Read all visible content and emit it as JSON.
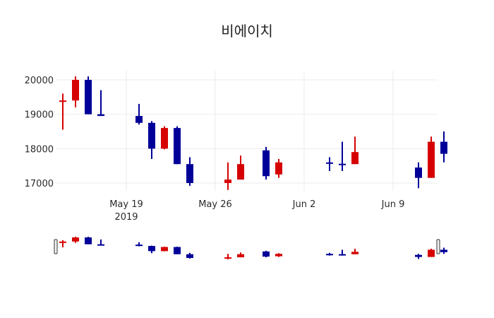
{
  "chart_data": {
    "type": "candlestick",
    "title": "비에이치",
    "xlabel": "",
    "ylabel": "",
    "ylim": [
      16650,
      20300
    ],
    "y_ticks": [
      17000,
      18000,
      19000,
      20000
    ],
    "x_ticks": [
      {
        "label": "May 19",
        "sublabel": "2019",
        "date": "2019-05-19"
      },
      {
        "label": "May 26",
        "sublabel": "",
        "date": "2019-05-26"
      },
      {
        "label": "Jun 2",
        "sublabel": "",
        "date": "2019-06-02"
      },
      {
        "label": "Jun 9",
        "sublabel": "",
        "date": "2019-06-09"
      }
    ],
    "grid": true,
    "increasing_color": "#d60000",
    "decreasing_color": "#000099",
    "range_slider": true,
    "candles": [
      {
        "date": "2019-05-14",
        "open": 19400,
        "high": 19600,
        "low": 18550,
        "close": 19400,
        "dir": "up"
      },
      {
        "date": "2019-05-15",
        "open": 19400,
        "high": 20100,
        "low": 19200,
        "close": 20000,
        "dir": "up"
      },
      {
        "date": "2019-05-16",
        "open": 20000,
        "high": 20100,
        "low": 19000,
        "close": 19000,
        "dir": "down"
      },
      {
        "date": "2019-05-17",
        "open": 19000,
        "high": 19700,
        "low": 18950,
        "close": 18950,
        "dir": "down"
      },
      {
        "date": "2019-05-20",
        "open": 18950,
        "high": 19300,
        "low": 18700,
        "close": 18750,
        "dir": "down"
      },
      {
        "date": "2019-05-21",
        "open": 18750,
        "high": 18800,
        "low": 17700,
        "close": 18000,
        "dir": "down"
      },
      {
        "date": "2019-05-22",
        "open": 18000,
        "high": 18650,
        "low": 17980,
        "close": 18600,
        "dir": "up"
      },
      {
        "date": "2019-05-23",
        "open": 18600,
        "high": 18650,
        "low": 17550,
        "close": 17550,
        "dir": "down"
      },
      {
        "date": "2019-05-24",
        "open": 17550,
        "high": 17750,
        "low": 16920,
        "close": 17000,
        "dir": "down"
      },
      {
        "date": "2019-05-27",
        "open": 17000,
        "high": 17600,
        "low": 16800,
        "close": 17100,
        "dir": "up"
      },
      {
        "date": "2019-05-28",
        "open": 17100,
        "high": 17800,
        "low": 17100,
        "close": 17550,
        "dir": "up"
      },
      {
        "date": "2019-05-30",
        "open": 17950,
        "high": 18050,
        "low": 17100,
        "close": 17200,
        "dir": "down"
      },
      {
        "date": "2019-05-31",
        "open": 17250,
        "high": 17700,
        "low": 17150,
        "close": 17600,
        "dir": "up"
      },
      {
        "date": "2019-06-04",
        "open": 17600,
        "high": 17750,
        "low": 17350,
        "close": 17580,
        "dir": "down"
      },
      {
        "date": "2019-06-05",
        "open": 17560,
        "high": 18200,
        "low": 17350,
        "close": 17540,
        "dir": "down"
      },
      {
        "date": "2019-06-06",
        "open": 17550,
        "high": 18350,
        "low": 17550,
        "close": 17900,
        "dir": "up"
      },
      {
        "date": "2019-06-11",
        "open": 17450,
        "high": 17600,
        "low": 16850,
        "close": 17150,
        "dir": "down"
      },
      {
        "date": "2019-06-12",
        "open": 17150,
        "high": 18350,
        "low": 17150,
        "close": 18200,
        "dir": "up"
      },
      {
        "date": "2019-06-13",
        "open": 18200,
        "high": 18500,
        "low": 17600,
        "close": 17850,
        "dir": "down"
      }
    ]
  }
}
